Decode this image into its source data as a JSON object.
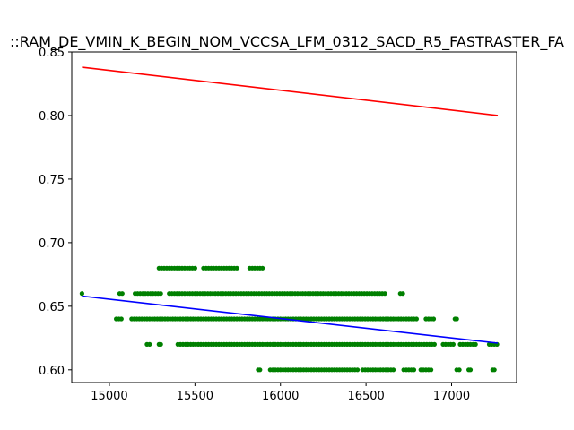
{
  "chart_data": {
    "type": "scatter",
    "title": "::RAM_DE_VMIN_K_BEGIN_NOM_VCCSA_LFM_0312_SACD_R5_FASTRASTER_FA",
    "xlabel": "",
    "ylabel": "",
    "xlim": [
      14780,
      17380
    ],
    "ylim": [
      0.59,
      0.85
    ],
    "grid": false,
    "x_ticks": [
      15000,
      15500,
      16000,
      16500,
      17000
    ],
    "y_ticks": [
      0.6,
      0.65,
      0.7,
      0.75,
      0.8,
      0.85
    ],
    "x_tick_labels": [
      "15000",
      "15500",
      "16000",
      "16500",
      "17000"
    ],
    "y_tick_labels": [
      "0.60",
      "0.65",
      "0.70",
      "0.75",
      "0.80",
      "0.85"
    ],
    "scatter_color": "#008000",
    "points": {
      "bands": [
        {
          "y": 0.68,
          "segments": [
            [
              15290,
              15500
            ],
            [
              15550,
              15750
            ],
            [
              15820,
              15900
            ]
          ]
        },
        {
          "y": 0.66,
          "segments": [
            [
              14840,
              14840
            ],
            [
              15060,
              15080
            ],
            [
              15150,
              15300
            ],
            [
              15350,
              16620
            ],
            [
              16700,
              16720
            ]
          ]
        },
        {
          "y": 0.64,
          "segments": [
            [
              15040,
              15080
            ],
            [
              15130,
              16800
            ],
            [
              16850,
              16900
            ],
            [
              17020,
              17030
            ]
          ]
        },
        {
          "y": 0.62,
          "segments": [
            [
              15220,
              15240
            ],
            [
              15290,
              15300
            ],
            [
              15400,
              16900
            ],
            [
              16950,
              17020
            ],
            [
              17050,
              17150
            ],
            [
              17220,
              17270
            ]
          ]
        },
        {
          "y": 0.6,
          "segments": [
            [
              15870,
              15880
            ],
            [
              15940,
              16450
            ],
            [
              16480,
              16670
            ],
            [
              16720,
              16780
            ],
            [
              16820,
              16880
            ],
            [
              17030,
              17050
            ],
            [
              17100,
              17110
            ],
            [
              17240,
              17250
            ]
          ]
        }
      ],
      "step": 15
    },
    "lines": [
      {
        "color": "#ff0000",
        "x": [
          14840,
          17270
        ],
        "y": [
          0.838,
          0.8
        ]
      },
      {
        "color": "#0000ff",
        "x": [
          14840,
          17270
        ],
        "y": [
          0.658,
          0.621
        ]
      }
    ]
  }
}
